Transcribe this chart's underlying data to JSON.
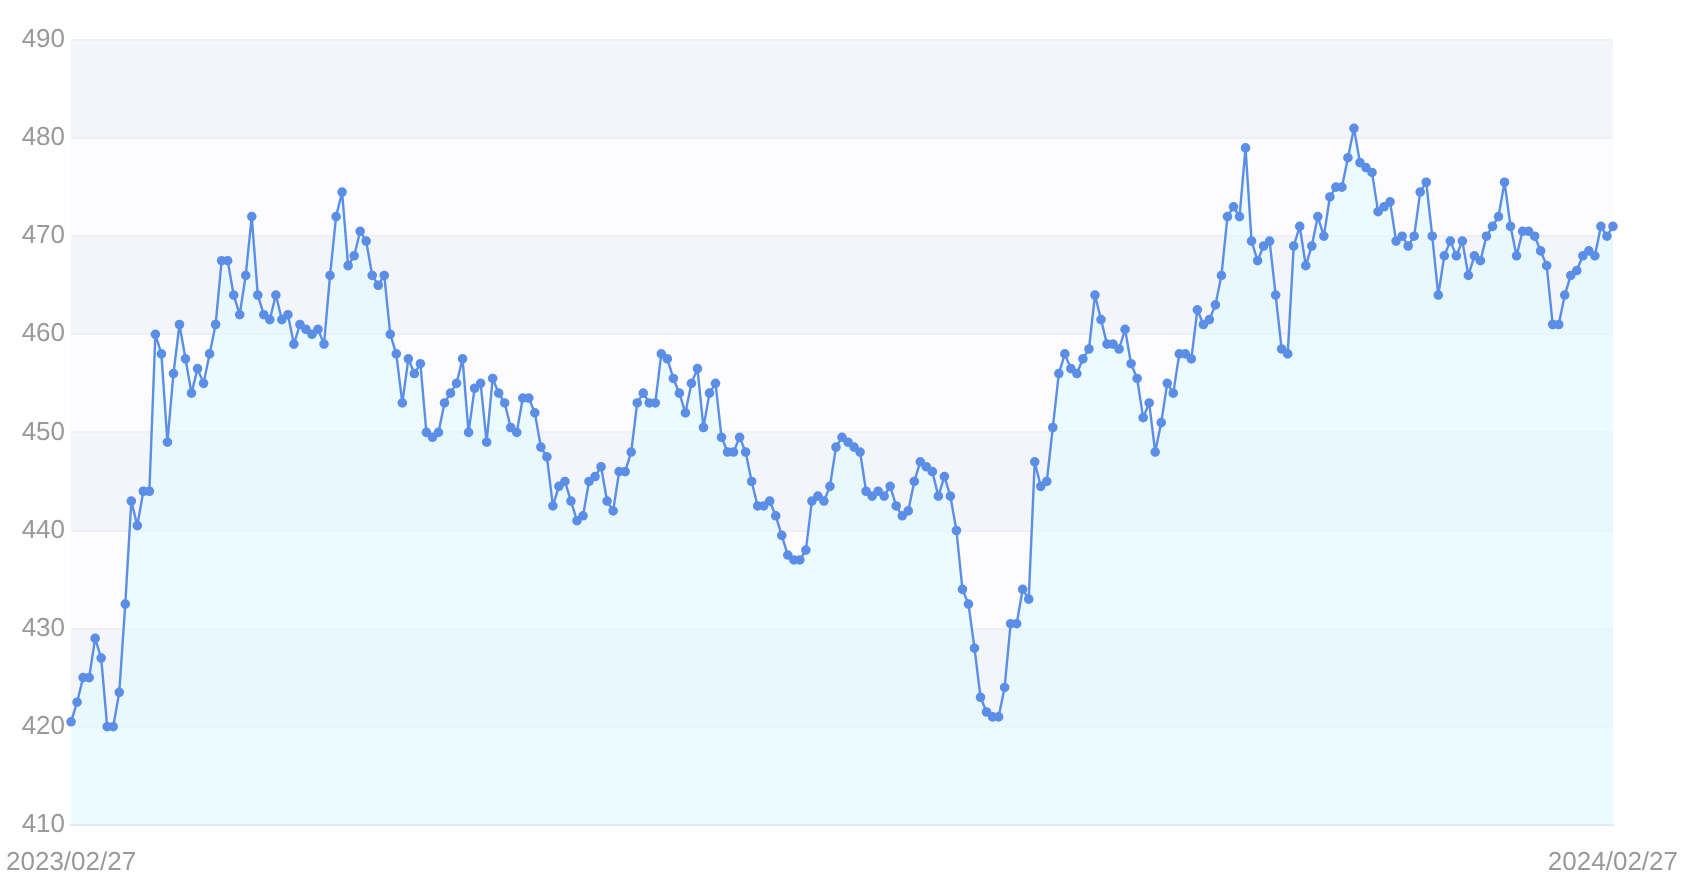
{
  "chart_data": {
    "type": "area",
    "ylim": [
      410,
      490
    ],
    "yticks": [
      410,
      420,
      430,
      440,
      450,
      460,
      470,
      480,
      490
    ],
    "grid": "y",
    "marker": "circle",
    "legend": false,
    "categories": [
      "2023/02/27",
      null,
      null,
      null,
      null,
      null,
      null,
      null,
      null,
      null,
      null,
      null,
      null,
      null,
      null,
      null,
      null,
      null,
      null,
      null,
      null,
      null,
      null,
      null,
      null,
      null,
      null,
      null,
      null,
      null,
      null,
      null,
      null,
      null,
      null,
      null,
      null,
      null,
      null,
      null,
      null,
      null,
      null,
      null,
      null,
      null,
      null,
      null,
      null,
      null,
      null,
      null,
      null,
      null,
      null,
      null,
      null,
      null,
      null,
      null,
      null,
      null,
      null,
      null,
      null,
      null,
      null,
      null,
      null,
      null,
      null,
      null,
      null,
      null,
      null,
      null,
      null,
      null,
      null,
      null,
      null,
      null,
      null,
      null,
      null,
      null,
      null,
      null,
      null,
      null,
      null,
      null,
      null,
      null,
      null,
      null,
      null,
      null,
      null,
      null,
      null,
      null,
      null,
      null,
      null,
      null,
      null,
      null,
      null,
      null,
      null,
      null,
      null,
      null,
      null,
      null,
      null,
      null,
      null,
      null,
      null,
      null,
      null,
      null,
      null,
      null,
      null,
      null,
      null,
      null,
      null,
      null,
      null,
      null,
      null,
      null,
      null,
      null,
      null,
      null,
      null,
      null,
      null,
      null,
      null,
      null,
      null,
      null,
      null,
      null,
      null,
      null,
      null,
      null,
      null,
      null,
      null,
      null,
      null,
      null,
      null,
      null,
      null,
      null,
      null,
      null,
      null,
      null,
      null,
      null,
      null,
      null,
      null,
      null,
      null,
      null,
      null,
      null,
      null,
      null,
      null,
      null,
      null,
      null,
      null,
      null,
      null,
      null,
      null,
      null,
      null,
      null,
      null,
      null,
      null,
      null,
      null,
      null,
      null,
      null,
      null,
      null,
      null,
      null,
      null,
      null,
      null,
      null,
      null,
      null,
      null,
      null,
      null,
      null,
      null,
      null,
      null,
      null,
      null,
      null,
      null,
      null,
      null,
      null,
      null,
      null,
      null,
      null,
      null,
      null,
      null,
      null,
      null,
      null,
      null,
      null,
      null,
      null,
      null,
      null,
      null,
      null,
      null,
      null,
      null,
      null,
      null,
      null,
      null,
      null,
      null,
      null,
      null,
      null,
      null,
      null,
      "2024/02/27"
    ],
    "series": [
      {
        "color": "#5b8ee6",
        "values": [
          420.5,
          422.5,
          425,
          425,
          429,
          427,
          420,
          420,
          423.5,
          432.5,
          443,
          440.5,
          444,
          444,
          460,
          458,
          449,
          456,
          461,
          457.5,
          454,
          456.5,
          455,
          458,
          461,
          467.5,
          467.5,
          464,
          462,
          466,
          472,
          464,
          462,
          461.5,
          464,
          461.5,
          462,
          459,
          461,
          460.5,
          460,
          460.5,
          459,
          466,
          472,
          474.5,
          467,
          468,
          470.5,
          469.5,
          466,
          465,
          466,
          460,
          458,
          453,
          457.5,
          456,
          457,
          450,
          449.5,
          450,
          453,
          454,
          455,
          457.5,
          450,
          454.5,
          455,
          449,
          455.5,
          454,
          453,
          450.5,
          450,
          453.5,
          453.5,
          452,
          448.5,
          447.5,
          442.5,
          444.5,
          445,
          443,
          441,
          441.5,
          445,
          445.5,
          446.5,
          443,
          442,
          446,
          446,
          448,
          453,
          454,
          453,
          453,
          458,
          457.5,
          455.5,
          454,
          452,
          455,
          456.5,
          450.5,
          454,
          455,
          449.5,
          448,
          448,
          449.5,
          448,
          445,
          442.5,
          442.5,
          443,
          441.5,
          439.5,
          437.5,
          437,
          437,
          438,
          443,
          443.5,
          443,
          444.5,
          448.5,
          449.5,
          449,
          448.5,
          448,
          444,
          443.5,
          444,
          443.5,
          444.5,
          442.5,
          441.5,
          442,
          445,
          447,
          446.5,
          446,
          443.5,
          445.5,
          443.5,
          440,
          434,
          432.5,
          428,
          423,
          421.5,
          421,
          421,
          424,
          430.5,
          430.5,
          434,
          433,
          447,
          444.5,
          445,
          450.5,
          456,
          458,
          456.5,
          456,
          457.5,
          458.5,
          464,
          461.5,
          459,
          459,
          458.5,
          460.5,
          457,
          455.5,
          451.5,
          453,
          448,
          451,
          455,
          454,
          458,
          458,
          457.5,
          462.5,
          461,
          461.5,
          463,
          466,
          472,
          473,
          472,
          479,
          469.5,
          467.5,
          469,
          469.5,
          464,
          458.5,
          458,
          469,
          471,
          467,
          469,
          472,
          470,
          474,
          475,
          475,
          478,
          481,
          477.5,
          477,
          476.5,
          472.5,
          473,
          473.5,
          469.5,
          470,
          469,
          470,
          474.5,
          475.5,
          470,
          464,
          468,
          469.5,
          468,
          469.5,
          466,
          468,
          467.5,
          470,
          471,
          472,
          475.5,
          471,
          468,
          470.5,
          470.5,
          470,
          468.5,
          467,
          461,
          461,
          464,
          466,
          466.5,
          468,
          468.5,
          468,
          471,
          470,
          471
        ]
      }
    ]
  }
}
